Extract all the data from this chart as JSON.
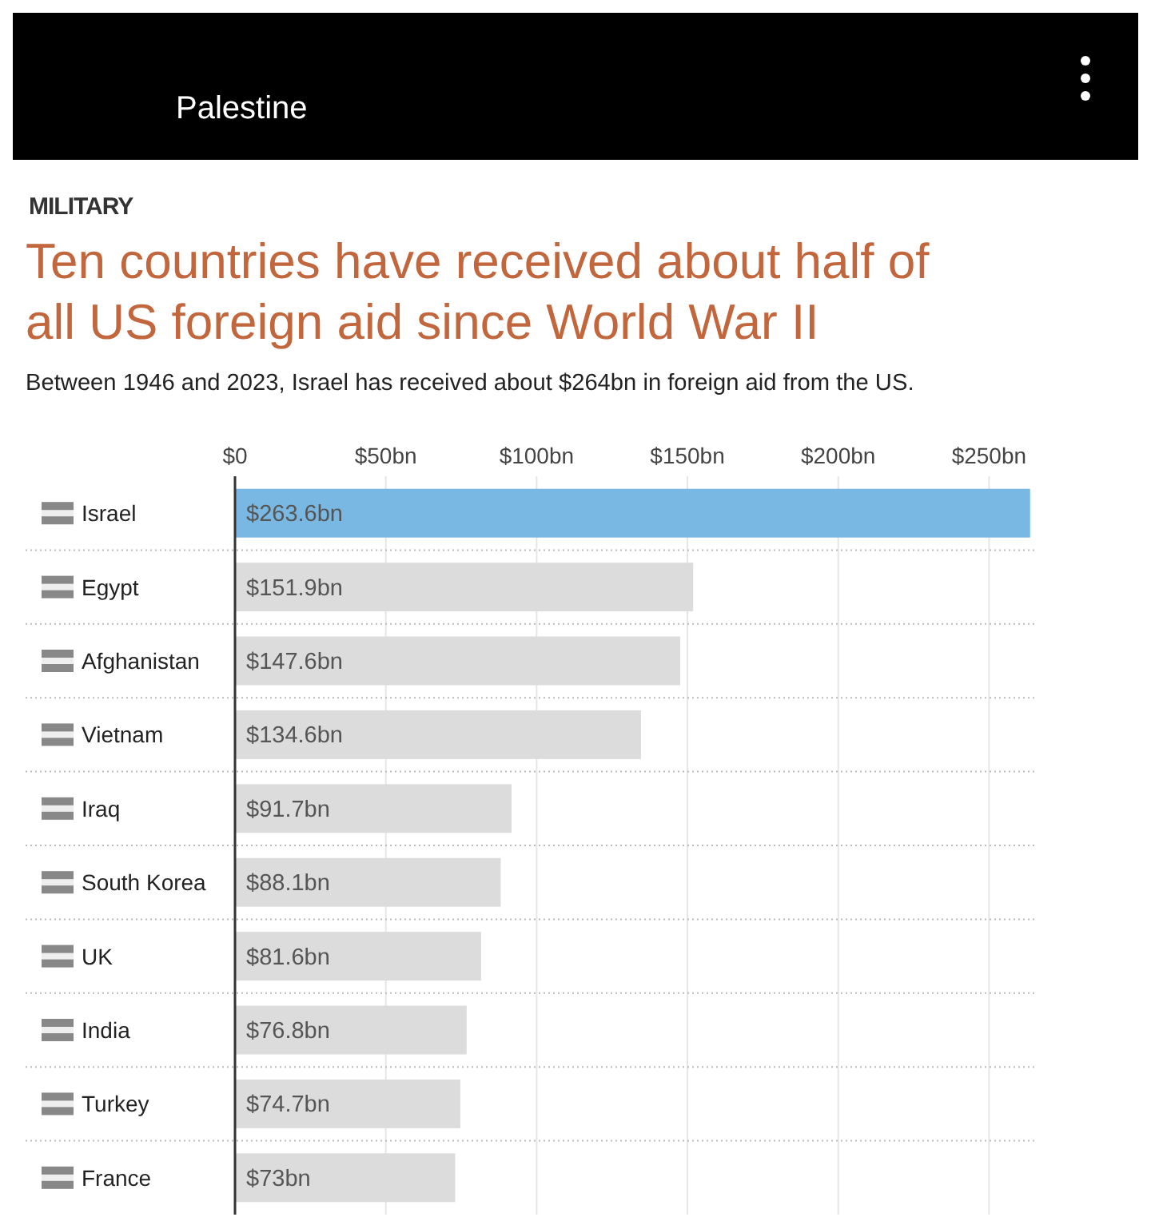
{
  "chart_data": {
    "type": "bar",
    "orientation": "horizontal",
    "title": "Ten countries have received about half of all US foreign aid since World War II",
    "subtitle": "Between 1946 and 2023, Israel has received about $264bn in foreign aid from the US.",
    "annotations": [
      "Palestine",
      "MILITARY"
    ],
    "categories": [
      "Israel",
      "Egypt",
      "Afghanistan",
      "Vietnam",
      "Iraq",
      "South Korea",
      "UK",
      "India",
      "Turkey",
      "France"
    ],
    "values": [
      263.6,
      151.9,
      147.6,
      134.6,
      91.7,
      88.1,
      81.6,
      76.8,
      74.7,
      73
    ],
    "value_labels": [
      "$263.6bn",
      "$151.9bn",
      "$147.6bn",
      "$134.6bn",
      "$91.7bn",
      "$88.1bn",
      "$81.6bn",
      "$76.8bn",
      "$74.7bn",
      "$73bn"
    ],
    "colors": [
      "#7ab8e4",
      "#dcdcdc",
      "#dcdcdc",
      "#dcdcdc",
      "#dcdcdc",
      "#dcdcdc",
      "#dcdcdc",
      "#dcdcdc",
      "#dcdcdc",
      "#dcdcdc"
    ],
    "xlim": [
      0,
      265
    ],
    "xticks": [
      {
        "value": 0,
        "label": "$0"
      },
      {
        "value": 50,
        "label": "$50bn"
      },
      {
        "value": 100,
        "label": "$100bn"
      },
      {
        "value": 150,
        "label": "$150bn"
      },
      {
        "value": 200,
        "label": "$200bn"
      },
      {
        "value": 250,
        "label": "$250bn"
      }
    ],
    "grid": "x"
  }
}
